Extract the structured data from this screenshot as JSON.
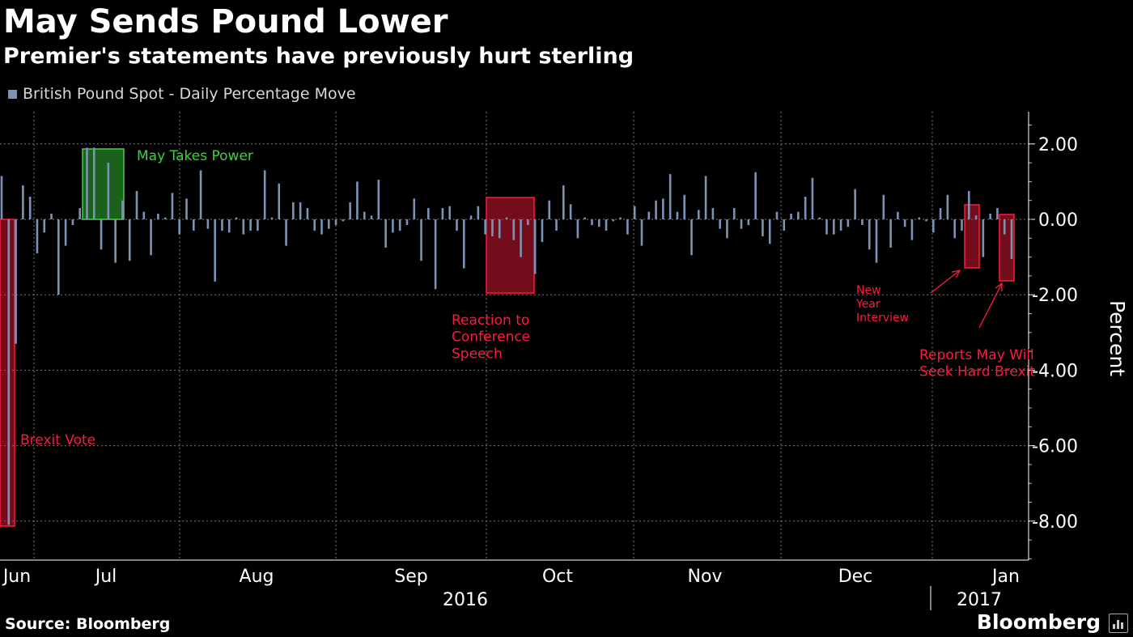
{
  "header": {
    "title": "May Sends Pound Lower",
    "subtitle": "Premier's statements have previously hurt sterling"
  },
  "legend": {
    "label": "British Pound Spot - Daily Percentage Move",
    "color": "#7d93b5"
  },
  "footer": {
    "source": "Source: Bloomberg",
    "brand": "Bloomberg"
  },
  "colors": {
    "bar": "#7d93b5",
    "red_annotation": "#ff1a3c",
    "green_annotation": "#3cd43c",
    "grid": "#777777"
  },
  "annotations": [
    {
      "text": "May Takes Power",
      "color": "green"
    },
    {
      "text": "Brexit Vote",
      "color": "red"
    },
    {
      "text": "Reaction to\nConference\nSpeech",
      "color": "red"
    },
    {
      "text": "New\nYear\nInterview",
      "color": "red"
    },
    {
      "text": "Reports May Will\nSeek Hard Brexit",
      "color": "red"
    }
  ],
  "chart_data": {
    "type": "bar",
    "title": "May Sends Pound Lower",
    "subtitle": "Premier's statements have previously hurt sterling",
    "ylabel": "Percent",
    "ylim": [
      -9,
      2.9
    ],
    "yticks": [
      "2.00",
      "0.00",
      "-2.00",
      "-4.00",
      "-6.00",
      "-8.00"
    ],
    "x_labels": [
      "Jun",
      "Jul",
      "Aug",
      "Sep",
      "Oct",
      "Nov",
      "Dec",
      "Jan"
    ],
    "year_labels": [
      "2016",
      "2017"
    ],
    "date_range": [
      "2016-06-15",
      "2017-01-17"
    ],
    "grid": true,
    "legend_position": "top-left",
    "series": [
      {
        "name": "British Pound Spot - Daily Percentage Move",
        "values": [
          1.15,
          -8.1,
          -3.3,
          0.9,
          0.6,
          -0.9,
          -0.35,
          0.15,
          -2.0,
          -0.7,
          -0.15,
          0.3,
          1.9,
          1.9,
          -0.8,
          1.5,
          -1.15,
          0.5,
          -1.1,
          0.75,
          0.2,
          -0.95,
          0.15,
          0.05,
          0.7,
          -0.4,
          0.55,
          -0.3,
          1.3,
          -0.25,
          -1.65,
          -0.3,
          -0.35,
          0.05,
          -0.4,
          -0.3,
          -0.3,
          1.3,
          0.05,
          0.95,
          -0.7,
          0.45,
          0.45,
          0.3,
          -0.3,
          -0.4,
          -0.25,
          -0.15,
          -0.05,
          0.45,
          1.0,
          0.2,
          0.1,
          1.05,
          -0.75,
          -0.35,
          -0.3,
          -0.15,
          0.55,
          -1.1,
          0.3,
          -1.85,
          0.3,
          0.35,
          -0.3,
          -1.3,
          0.1,
          0.35,
          -0.4,
          -0.45,
          -0.5,
          0.05,
          -0.55,
          -1.0,
          -0.15,
          -1.45,
          -0.6,
          0.5,
          -0.3,
          0.9,
          0.4,
          -0.5,
          0.05,
          -0.15,
          -0.2,
          -0.3,
          -0.05,
          0.05,
          -0.4,
          0.35,
          -0.7,
          0.2,
          0.5,
          0.55,
          1.2,
          0.2,
          0.65,
          -0.95,
          0.25,
          1.15,
          0.3,
          -0.25,
          -0.5,
          0.3,
          -0.25,
          -0.15,
          1.25,
          -0.45,
          -0.65,
          0.2,
          -0.3,
          0.15,
          0.2,
          0.6,
          1.1,
          0.05,
          -0.4,
          -0.4,
          -0.3,
          -0.2,
          0.8,
          -0.15,
          -0.8,
          -1.15,
          0.65,
          -0.75,
          0.2,
          -0.2,
          -0.55,
          0.05,
          -0.05,
          -0.35,
          0.3,
          0.65,
          -0.5,
          -0.3,
          0.75,
          0.1,
          -1.0,
          0.15,
          0.3,
          -0.4,
          -1.05
        ]
      }
    ]
  }
}
